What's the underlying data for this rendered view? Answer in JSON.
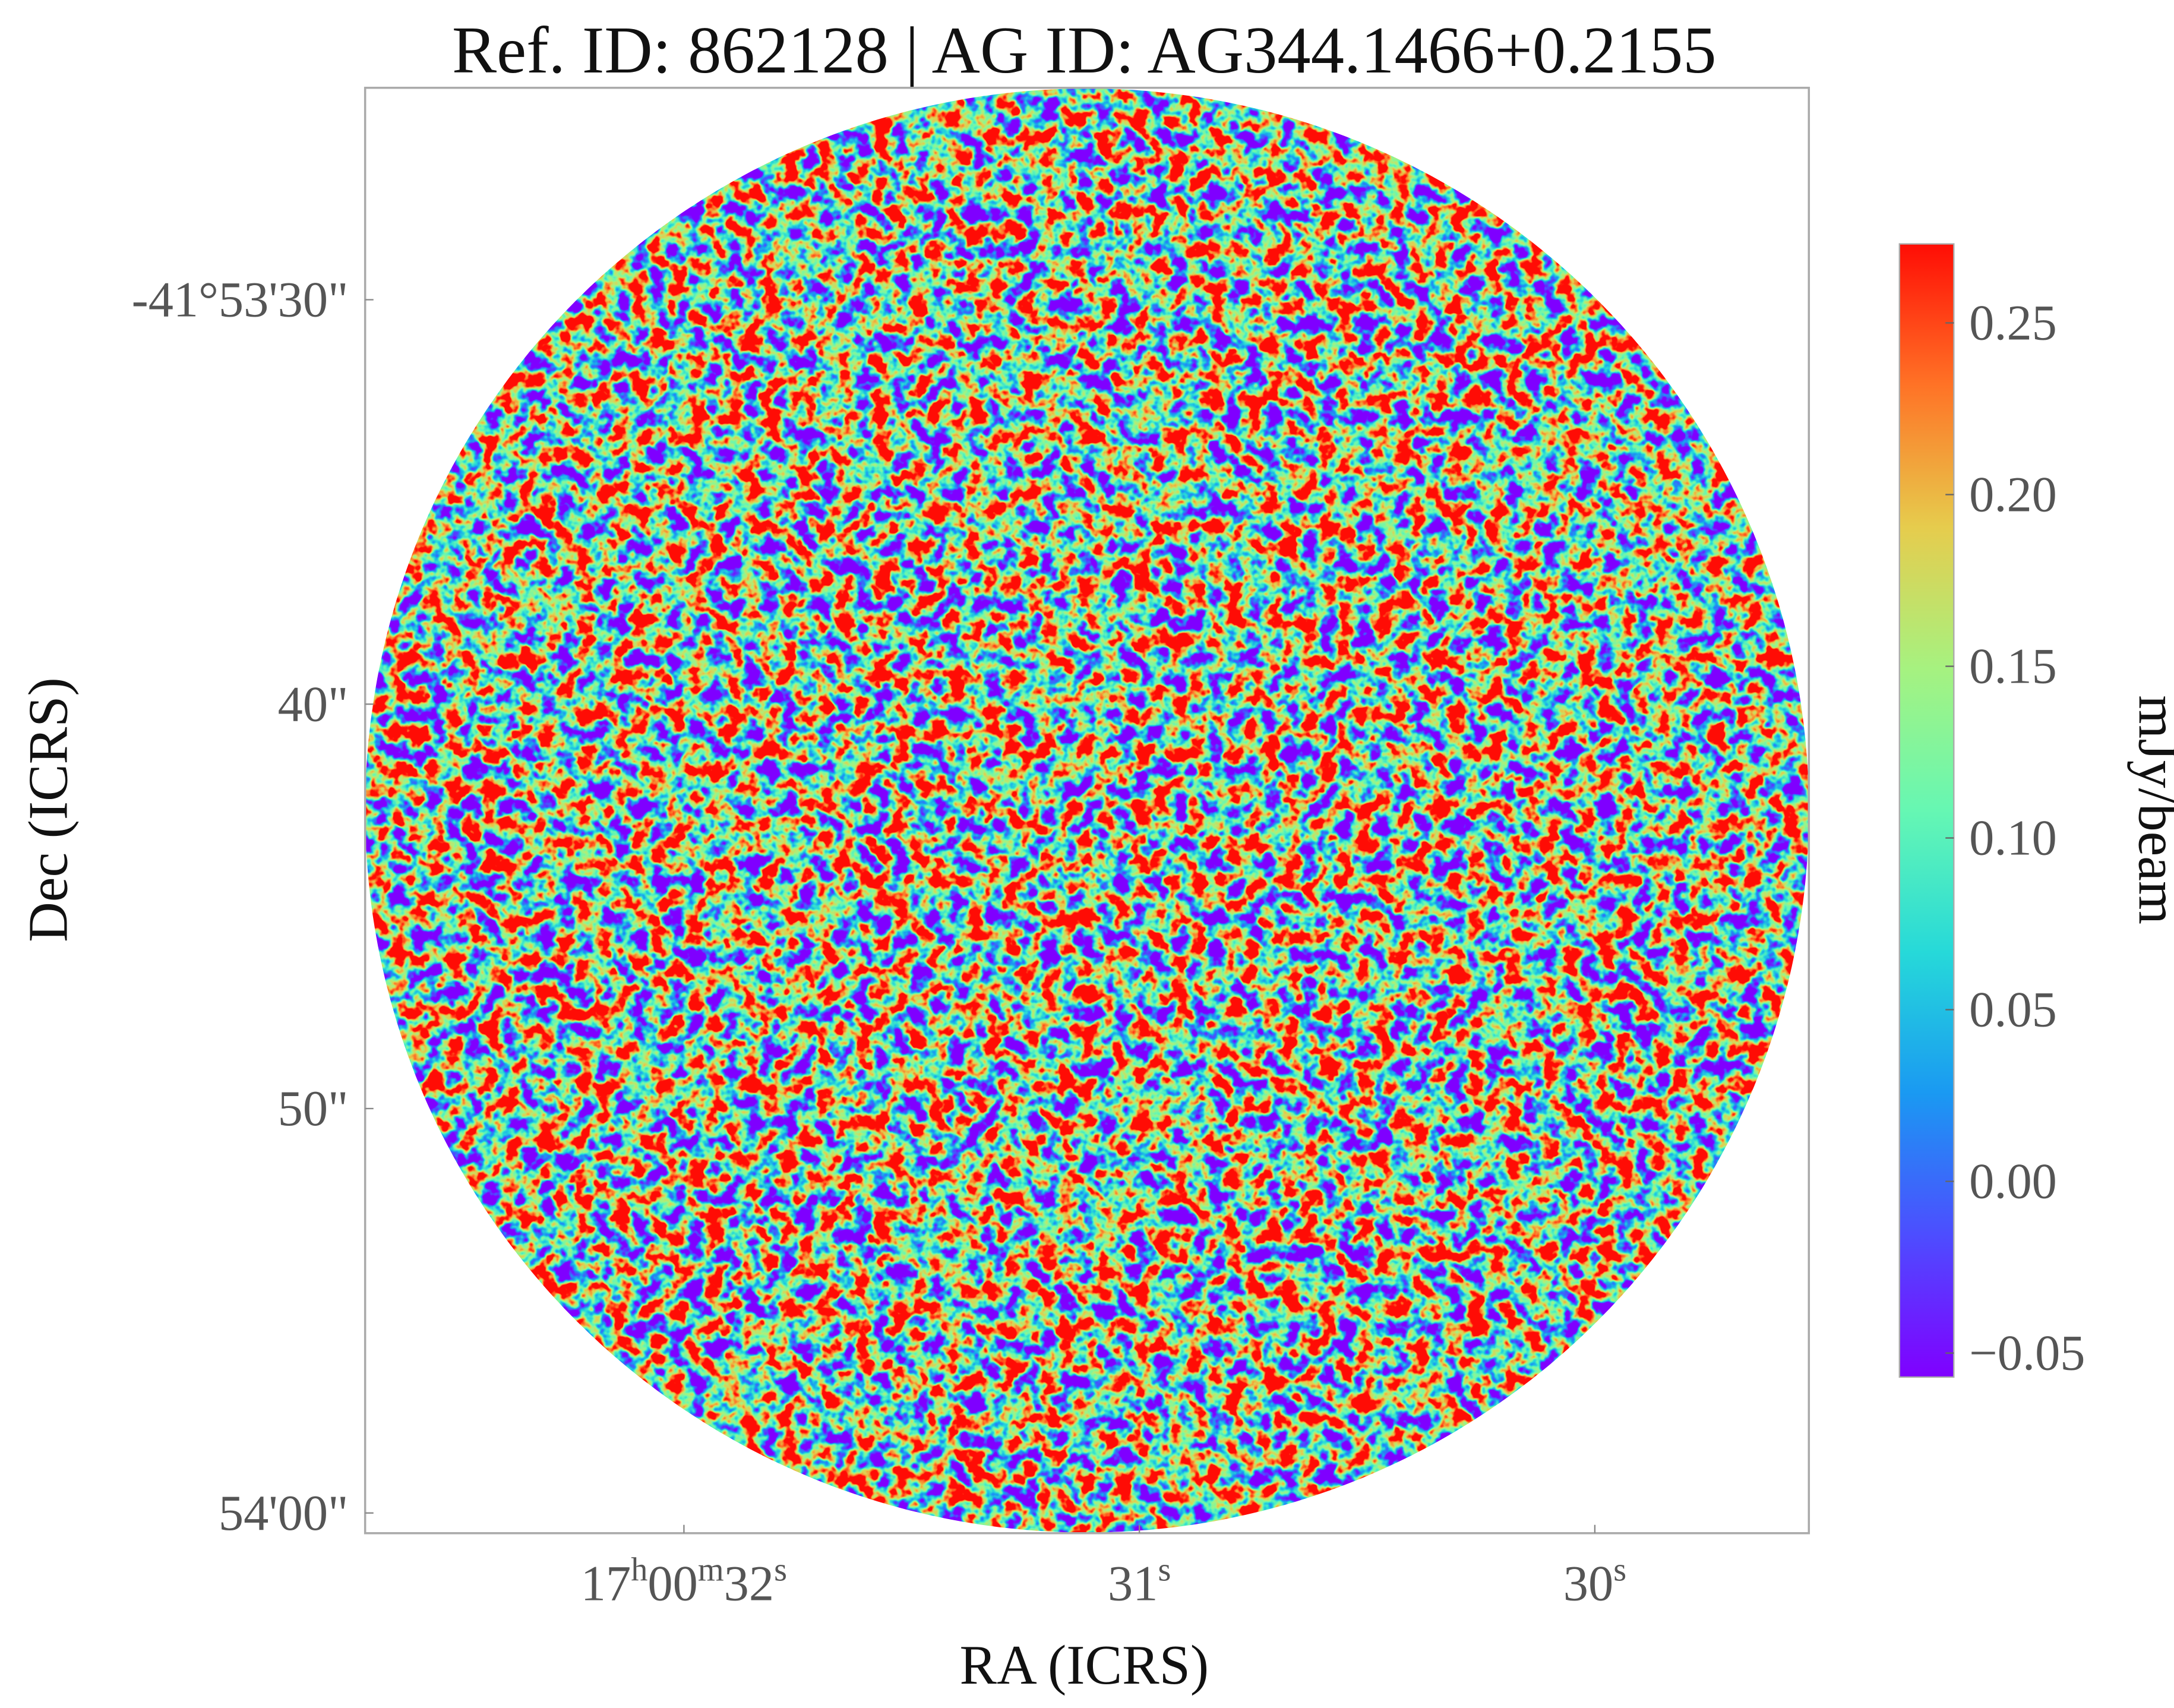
{
  "chart_data": {
    "type": "image",
    "title": "Ref. ID: 862128 | AG ID: AG344.1466+0.2155",
    "x_label": "RA (ICRS)",
    "y_label": "Dec (ICRS)",
    "xlim": [
      32.7,
      29.53
    ],
    "xticks": [
      {
        "value": 32,
        "label": "17h00m32s"
      },
      {
        "value": 31,
        "label": "31s"
      },
      {
        "value": 30,
        "label": "30s"
      }
    ],
    "ylim": [
      60.5,
      24.76
    ],
    "yticks": [
      {
        "value": 30,
        "label": "-41°53'30\""
      },
      {
        "value": 40,
        "label": "40\""
      },
      {
        "value": 50,
        "label": "50\""
      },
      {
        "value": 60,
        "label": "54'00\""
      }
    ],
    "colorbar": {
      "label": "mJy/beam",
      "colormap": "rainbow",
      "lim": [
        -0.057,
        0.273
      ],
      "ticks": [
        {
          "value": 0.25,
          "label": "0.25"
        },
        {
          "value": 0.2,
          "label": "0.20"
        },
        {
          "value": 0.15,
          "label": "0.15"
        },
        {
          "value": 0.1,
          "label": "0.10"
        },
        {
          "value": 0.05,
          "label": "0.05"
        },
        {
          "value": 0,
          "label": "0.00"
        },
        {
          "value": -0.05,
          "label": "−0.05"
        }
      ]
    }
  }
}
